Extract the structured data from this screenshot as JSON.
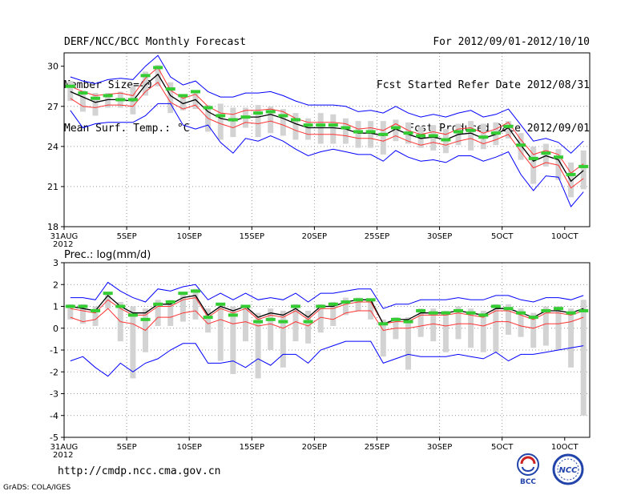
{
  "header": {
    "left": [
      "DERF/NCC/BCC Monthly Forecast",
      "Member Size=40",
      "Mean Surf. Temp.: °C"
    ],
    "right": [
      "For 2012/09/01-2012/10/10",
      "Fcst Started Refer Date 2012/08/31",
      "Fcst Produced Date 2012/09/01"
    ]
  },
  "footer": {
    "url": "http://cmdp.ncc.cma.gov.cn",
    "credit": "GrADS: COLA/IGES"
  },
  "logos": {
    "bcc": "BCC",
    "ncc": "NCC"
  },
  "colors": {
    "mean": "#000000",
    "observed": "#33cc33",
    "inner": "#ff3333",
    "outer": "#0000ff",
    "bar": "#d3d3d3",
    "grid": "#999999"
  },
  "chart_data": [
    {
      "type": "line",
      "title": "Mean Surf. Temp.: °C",
      "x_labels": [
        "31AUG",
        "5SEP",
        "10SEP",
        "15SEP",
        "20SEP",
        "25SEP",
        "30SEP",
        "5OCT",
        "10OCT"
      ],
      "x_label_days": [
        0,
        5,
        10,
        15,
        20,
        25,
        30,
        35,
        40
      ],
      "x_year": "2012",
      "ylim": [
        18,
        31
      ],
      "yticks": [
        18,
        21,
        24,
        27,
        30
      ],
      "series": [
        {
          "name": "ensemble mean",
          "role": "mean",
          "values": [
            28.1,
            27.7,
            27.3,
            27.5,
            27.5,
            27.4,
            28.6,
            29.4,
            27.8,
            27.2,
            27.5,
            26.6,
            26.1,
            25.9,
            26.2,
            26.2,
            26.4,
            26.1,
            25.7,
            25.4,
            25.4,
            25.4,
            25.3,
            25.0,
            25.0,
            24.8,
            25.3,
            24.9,
            24.6,
            24.7,
            24.5,
            24.9,
            25.0,
            24.6,
            24.9,
            25.4,
            24.1,
            22.9,
            23.3,
            23.0,
            21.4,
            22.2
          ]
        },
        {
          "name": "upper outer",
          "role": "outer",
          "values": [
            29.2,
            28.9,
            28.7,
            29.0,
            29.1,
            29.0,
            30.0,
            30.8,
            29.2,
            28.6,
            28.9,
            28.1,
            27.7,
            27.7,
            28.0,
            28.0,
            28.1,
            27.8,
            27.4,
            27.1,
            27.1,
            27.1,
            27.0,
            26.6,
            26.7,
            26.5,
            27.0,
            26.5,
            26.2,
            26.4,
            26.2,
            26.5,
            26.7,
            26.2,
            26.4,
            26.8,
            25.6,
            24.4,
            24.6,
            24.3,
            23.5,
            24.4
          ]
        },
        {
          "name": "lower outer",
          "role": "outer",
          "values": [
            26.7,
            25.4,
            25.7,
            25.8,
            25.8,
            25.8,
            26.3,
            27.2,
            27.2,
            25.6,
            25.3,
            25.6,
            24.3,
            23.5,
            24.6,
            24.4,
            24.8,
            24.4,
            23.8,
            23.3,
            23.6,
            23.8,
            23.6,
            23.4,
            23.4,
            22.9,
            23.7,
            23.2,
            22.9,
            23.0,
            22.8,
            23.3,
            23.3,
            22.9,
            23.2,
            23.6,
            21.9,
            20.7,
            21.8,
            21.7,
            19.5,
            20.6
          ]
        },
        {
          "name": "upper inner",
          "role": "inner",
          "values": [
            28.5,
            28.1,
            27.8,
            27.9,
            28.0,
            27.8,
            29.1,
            29.9,
            28.2,
            27.6,
            27.9,
            27.0,
            26.5,
            26.4,
            26.7,
            26.7,
            26.8,
            26.6,
            26.1,
            25.8,
            25.8,
            25.8,
            25.7,
            25.3,
            25.4,
            25.2,
            25.7,
            25.2,
            24.9,
            25.1,
            24.9,
            25.3,
            25.4,
            25.0,
            25.3,
            25.8,
            24.5,
            23.4,
            23.7,
            23.4,
            22.0,
            22.7
          ]
        },
        {
          "name": "lower inner",
          "role": "inner",
          "values": [
            27.6,
            27.0,
            26.9,
            27.1,
            27.1,
            27.0,
            28.1,
            28.8,
            27.3,
            26.8,
            27.1,
            26.1,
            25.7,
            25.4,
            25.8,
            25.7,
            25.9,
            25.6,
            25.2,
            24.9,
            24.9,
            24.9,
            24.8,
            24.6,
            24.6,
            24.4,
            24.8,
            24.4,
            24.1,
            24.3,
            24.1,
            24.4,
            24.6,
            24.2,
            24.5,
            24.9,
            23.6,
            22.4,
            22.8,
            22.6,
            20.9,
            21.6
          ]
        },
        {
          "name": "observed",
          "role": "observed",
          "values": [
            28.5,
            28.0,
            27.6,
            27.8,
            27.5,
            27.5,
            29.3,
            29.9,
            28.3,
            27.8,
            28.1,
            26.9,
            26.3,
            26.0,
            26.2,
            26.5,
            26.6,
            26.3,
            26.0,
            25.6,
            25.6,
            25.6,
            25.4,
            25.1,
            25.1,
            24.9,
            25.4,
            25.0,
            24.8,
            24.8,
            24.5,
            25.1,
            25.2,
            24.7,
            25.0,
            25.5,
            24.1,
            23.1,
            23.5,
            23.2,
            21.9,
            22.5
          ]
        }
      ],
      "bars": [
        [
          27.4,
          28.9
        ],
        [
          26.6,
          28.2
        ],
        [
          26.3,
          28.0
        ],
        [
          26.9,
          28.0
        ],
        [
          26.9,
          28.1
        ],
        [
          26.4,
          28.5
        ],
        [
          27.8,
          29.6
        ],
        [
          28.5,
          30.1
        ],
        [
          26.5,
          28.8
        ],
        [
          26.7,
          27.9
        ],
        [
          26.8,
          28.2
        ],
        [
          25.1,
          27.1
        ],
        [
          24.5,
          27.2
        ],
        [
          24.7,
          26.9
        ],
        [
          25.4,
          26.9
        ],
        [
          24.7,
          27.1
        ],
        [
          25.0,
          27.0
        ],
        [
          24.8,
          26.8
        ],
        [
          24.5,
          26.5
        ],
        [
          24.5,
          26.1
        ],
        [
          24.2,
          26.5
        ],
        [
          24.2,
          26.4
        ],
        [
          24.2,
          26.1
        ],
        [
          23.9,
          25.9
        ],
        [
          23.9,
          25.9
        ],
        [
          23.4,
          25.9
        ],
        [
          24.4,
          26.0
        ],
        [
          24.2,
          25.8
        ],
        [
          23.9,
          25.5
        ],
        [
          23.7,
          25.6
        ],
        [
          23.5,
          25.3
        ],
        [
          24.1,
          25.7
        ],
        [
          23.7,
          25.9
        ],
        [
          23.8,
          25.7
        ],
        [
          24.1,
          25.8
        ],
        [
          24.6,
          25.9
        ],
        [
          23.0,
          25.0
        ],
        [
          21.2,
          24.0
        ],
        [
          22.5,
          24.2
        ],
        [
          21.5,
          23.8
        ],
        [
          20.2,
          22.8
        ],
        [
          20.8,
          23.7
        ]
      ]
    },
    {
      "type": "line",
      "title": "Prec.: log(mm/d)",
      "x_labels": [
        "31AUG",
        "5SEP",
        "10SEP",
        "15SEP",
        "20SEP",
        "25SEP",
        "30SEP",
        "5OCT",
        "10OCT"
      ],
      "x_label_days": [
        0,
        5,
        10,
        15,
        20,
        25,
        30,
        35,
        40
      ],
      "x_year": "2012",
      "ylim": [
        -5,
        3
      ],
      "yticks": [
        -5,
        -4,
        -3,
        -2,
        -1,
        0,
        1,
        2,
        3
      ],
      "series": [
        {
          "name": "ensemble mean",
          "role": "mean",
          "values": [
            1.0,
            0.9,
            0.8,
            1.5,
            1.0,
            0.7,
            0.7,
            1.1,
            1.1,
            1.4,
            1.5,
            0.6,
            1.0,
            0.8,
            1.0,
            0.5,
            0.7,
            0.6,
            0.9,
            0.5,
            1.0,
            1.0,
            1.2,
            1.3,
            1.3,
            0.2,
            0.4,
            0.4,
            0.7,
            0.7,
            0.7,
            0.8,
            0.7,
            0.6,
            0.9,
            0.9,
            0.7,
            0.5,
            0.8,
            0.8,
            0.7,
            0.9
          ]
        },
        {
          "name": "upper outer",
          "role": "outer",
          "values": [
            1.4,
            1.4,
            1.3,
            2.1,
            1.7,
            1.4,
            1.2,
            1.8,
            1.7,
            1.9,
            2.0,
            1.3,
            1.6,
            1.3,
            1.6,
            1.3,
            1.4,
            1.3,
            1.6,
            1.2,
            1.6,
            1.6,
            1.7,
            1.8,
            1.8,
            0.9,
            1.1,
            1.1,
            1.3,
            1.3,
            1.3,
            1.4,
            1.3,
            1.3,
            1.5,
            1.5,
            1.3,
            1.2,
            1.4,
            1.4,
            1.3,
            1.5
          ]
        },
        {
          "name": "lower outer",
          "role": "outer",
          "values": [
            -1.5,
            -1.3,
            -1.8,
            -2.2,
            -1.6,
            -2.0,
            -1.6,
            -1.4,
            -1.0,
            -0.7,
            -0.7,
            -1.6,
            -1.6,
            -1.5,
            -1.8,
            -1.4,
            -1.7,
            -1.2,
            -1.2,
            -1.6,
            -1.0,
            -0.8,
            -0.6,
            -0.6,
            -0.6,
            -1.6,
            -1.4,
            -1.2,
            -1.3,
            -1.3,
            -1.3,
            -1.2,
            -1.3,
            -1.4,
            -1.1,
            -1.5,
            -1.2,
            -1.2,
            -1.1,
            -1.0,
            -0.9,
            -0.8
          ]
        },
        {
          "name": "upper inner",
          "role": "inner",
          "values": [
            0.9,
            0.8,
            0.7,
            1.3,
            0.9,
            0.6,
            0.6,
            1.0,
            1.0,
            1.3,
            1.4,
            0.5,
            0.9,
            0.7,
            0.9,
            0.4,
            0.6,
            0.5,
            0.8,
            0.4,
            0.9,
            0.9,
            1.1,
            1.2,
            1.2,
            0.2,
            0.3,
            0.3,
            0.6,
            0.6,
            0.6,
            0.7,
            0.6,
            0.5,
            0.8,
            0.8,
            0.6,
            0.4,
            0.7,
            0.7,
            0.6,
            0.8
          ]
        },
        {
          "name": "lower inner",
          "role": "inner",
          "values": [
            0.5,
            0.3,
            0.4,
            0.9,
            0.3,
            0.2,
            -0.1,
            0.5,
            0.5,
            0.7,
            0.8,
            0.2,
            0.4,
            0.2,
            0.3,
            0.1,
            0.2,
            0.0,
            0.3,
            0.1,
            0.5,
            0.4,
            0.7,
            0.8,
            0.8,
            -0.1,
            0.0,
            0.0,
            0.1,
            0.2,
            0.1,
            0.2,
            0.2,
            0.1,
            0.3,
            0.3,
            0.1,
            0.0,
            0.2,
            0.2,
            0.3,
            0.5
          ]
        },
        {
          "name": "observed",
          "role": "observed",
          "values": [
            1.0,
            1.0,
            0.8,
            1.6,
            1.0,
            0.6,
            0.4,
            1.1,
            1.2,
            1.6,
            1.7,
            0.5,
            1.1,
            0.6,
            1.0,
            0.3,
            0.4,
            0.3,
            1.0,
            0.3,
            1.0,
            1.1,
            1.2,
            1.3,
            1.3,
            0.2,
            0.4,
            0.3,
            0.8,
            0.7,
            0.7,
            0.8,
            0.7,
            0.6,
            1.0,
            0.9,
            0.7,
            0.5,
            0.8,
            0.9,
            0.7,
            0.8
          ]
        }
      ],
      "bars": [
        [
          0.4,
          1.1
        ],
        [
          0.2,
          1.1
        ],
        [
          0.1,
          1.0
        ],
        [
          0.9,
          1.6
        ],
        [
          -0.6,
          1.2
        ],
        [
          -2.3,
          1.0
        ],
        [
          -1.1,
          0.9
        ],
        [
          0.1,
          1.3
        ],
        [
          0.1,
          1.3
        ],
        [
          0.3,
          1.6
        ],
        [
          0.4,
          1.8
        ],
        [
          -0.2,
          0.9
        ],
        [
          -1.5,
          1.1
        ],
        [
          -2.1,
          1.0
        ],
        [
          -0.6,
          1.0
        ],
        [
          -2.3,
          0.7
        ],
        [
          -1.0,
          0.9
        ],
        [
          -1.8,
          0.8
        ],
        [
          -0.6,
          1.1
        ],
        [
          -0.7,
          0.8
        ],
        [
          -0.2,
          1.1
        ],
        [
          0.1,
          1.2
        ],
        [
          0.6,
          1.4
        ],
        [
          0.8,
          1.4
        ],
        [
          0.4,
          1.3
        ],
        [
          -1.3,
          0.4
        ],
        [
          -0.5,
          0.5
        ],
        [
          -1.9,
          0.5
        ],
        [
          -0.4,
          0.9
        ],
        [
          -0.6,
          0.9
        ],
        [
          -1.1,
          0.8
        ],
        [
          -0.5,
          1.0
        ],
        [
          -0.9,
          0.9
        ],
        [
          -1.1,
          0.8
        ],
        [
          -1.1,
          1.1
        ],
        [
          -0.3,
          1.1
        ],
        [
          -0.4,
          0.9
        ],
        [
          -0.9,
          0.7
        ],
        [
          -0.8,
          1.0
        ],
        [
          -1.0,
          1.0
        ],
        [
          -1.8,
          0.9
        ],
        [
          -4.0,
          1.3
        ]
      ]
    }
  ]
}
